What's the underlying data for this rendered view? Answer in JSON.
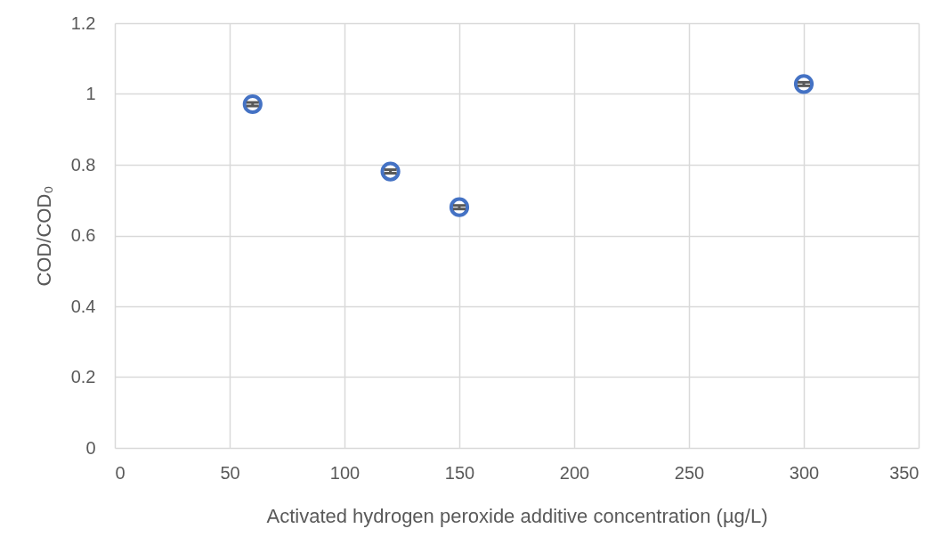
{
  "chart_data": {
    "type": "scatter",
    "xlabel": "Activated hydrogen peroxide additive concentration (µg/L)",
    "ylabel": "COD/COD₀",
    "x": [
      60,
      120,
      150,
      300
    ],
    "series": [
      {
        "color": "#4472c4",
        "values": [
          0.971,
          0.781,
          0.68,
          1.028
        ],
        "errors": [
          0.005,
          0.005,
          0.005,
          0.005
        ]
      }
    ],
    "xlim": [
      0,
      350
    ],
    "xticks": [
      0,
      50,
      100,
      150,
      200,
      250,
      300,
      350
    ],
    "ylim": [
      0,
      1.2
    ],
    "yticks": [
      0,
      0.2,
      0.4,
      0.6,
      0.8,
      1,
      1.2
    ],
    "grid": true,
    "marker": "circle"
  }
}
